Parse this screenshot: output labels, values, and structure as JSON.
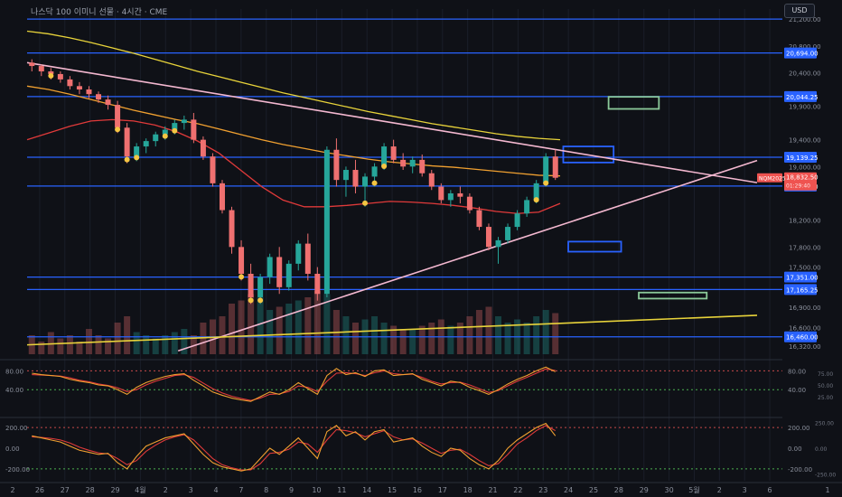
{
  "title": "나스닥 100 이미니 선물 · 4시간 · CME",
  "currency": "USD",
  "colors": {
    "bg": "#0f1117",
    "grid": "#1a1e29",
    "hline": "#2962ff",
    "up": "#26a69a",
    "down": "#ef7070",
    "ma_yellow": "#e8d33a",
    "ma_orange": "#f0a030",
    "ma_red": "#e03a3a",
    "trend_pink": "#f4b8d0",
    "box_blue": "#2962ff",
    "box_green": "#8bc99a",
    "marker": "#f5c542"
  },
  "price_axis": {
    "ticks": [
      "21,200.00",
      "20,800.00",
      "20,400.00",
      "19,900.00",
      "19,400.00",
      "19,000.00",
      "18,200.00",
      "17,800.00",
      "17,500.00",
      "16,900.00",
      "16,600.00",
      "16,320.00"
    ],
    "levels": [
      {
        "label": "20,694.00",
        "value": 20694
      },
      {
        "label": "20,044.25",
        "value": 20044.25
      },
      {
        "label": "19,139.25",
        "value": 19139.25
      },
      {
        "label": "18,709.00",
        "value": 18709
      },
      {
        "label": "17,351.00",
        "value": 17351
      },
      {
        "label": "17,165.25",
        "value": 17165.25
      },
      {
        "label": "16,460.00",
        "value": 16460
      }
    ],
    "current": {
      "symbol": "NQM2025",
      "price": "18,832.50",
      "countdown": "01:29:40"
    }
  },
  "x_axis": [
    "26",
    "27",
    "28",
    "29",
    "4월",
    "2",
    "3",
    "4",
    "7",
    "8",
    "9",
    "10",
    "11",
    "14",
    "15",
    "16",
    "17",
    "18",
    "21",
    "22",
    "23",
    "24",
    "25",
    "28",
    "29",
    "30",
    "5월",
    "2",
    "3",
    "6"
  ],
  "x_axis_edges": [
    "2",
    "1"
  ],
  "osc1": {
    "left_ticks": [
      "80.00",
      "40.00"
    ],
    "right_ticks": [
      "75.00",
      "50.00",
      "25.00"
    ],
    "mid_ticks": [
      "80.00",
      "40.00"
    ]
  },
  "osc2": {
    "left_ticks": [
      "200.00",
      "0.00",
      "-200.00"
    ],
    "right_ticks": [
      "250.00",
      "0.00",
      "-250.00"
    ],
    "mid_ticks": [
      "200.00",
      "0.00",
      "-200.00"
    ]
  },
  "chart_data": {
    "type": "candlestick",
    "title": "나스닥 100 이미니 선물 · 4시간 · CME",
    "ylim": [
      16200,
      21350
    ],
    "candles": [
      [
        20550,
        20600,
        20420,
        20500
      ],
      [
        20500,
        20520,
        20350,
        20420
      ],
      [
        20420,
        20470,
        20300,
        20380
      ],
      [
        20380,
        20420,
        20250,
        20300
      ],
      [
        20300,
        20350,
        20150,
        20200
      ],
      [
        20200,
        20260,
        20080,
        20150
      ],
      [
        20150,
        20200,
        20020,
        20080
      ],
      [
        20080,
        20120,
        19950,
        20000
      ],
      [
        20000,
        20060,
        19850,
        19920
      ],
      [
        19920,
        19980,
        19500,
        19580
      ],
      [
        19580,
        19650,
        19050,
        19150
      ],
      [
        19150,
        19350,
        19080,
        19300
      ],
      [
        19300,
        19420,
        19200,
        19380
      ],
      [
        19380,
        19520,
        19300,
        19480
      ],
      [
        19480,
        19600,
        19400,
        19550
      ],
      [
        19550,
        19700,
        19480,
        19650
      ],
      [
        19650,
        19760,
        19550,
        19700
      ],
      [
        19700,
        19800,
        19350,
        19400
      ],
      [
        19400,
        19450,
        19100,
        19150
      ],
      [
        19150,
        19200,
        18700,
        18750
      ],
      [
        18750,
        18800,
        18300,
        18350
      ],
      [
        18350,
        18400,
        17700,
        17800
      ],
      [
        17800,
        17900,
        17300,
        17400
      ],
      [
        17400,
        17550,
        16950,
        17050
      ],
      [
        17050,
        17400,
        16950,
        17350
      ],
      [
        17350,
        17700,
        17250,
        17650
      ],
      [
        17650,
        17800,
        17100,
        17200
      ],
      [
        17200,
        17600,
        17150,
        17550
      ],
      [
        17550,
        17900,
        17450,
        17850
      ],
      [
        17850,
        18000,
        17300,
        17400
      ],
      [
        17400,
        17500,
        17000,
        17100
      ],
      [
        17100,
        19300,
        17050,
        19250
      ],
      [
        19250,
        19420,
        18700,
        18800
      ],
      [
        18800,
        19000,
        18550,
        18950
      ],
      [
        18950,
        19100,
        18600,
        18700
      ],
      [
        18700,
        18900,
        18400,
        18850
      ],
      [
        18850,
        19050,
        18700,
        19000
      ],
      [
        19000,
        19350,
        18950,
        19300
      ],
      [
        19300,
        19400,
        19050,
        19100
      ],
      [
        19100,
        19200,
        18950,
        19000
      ],
      [
        19000,
        19150,
        18900,
        19100
      ],
      [
        19100,
        19180,
        18850,
        18900
      ],
      [
        18900,
        18950,
        18650,
        18700
      ],
      [
        18700,
        18750,
        18450,
        18500
      ],
      [
        18500,
        18650,
        18400,
        18600
      ],
      [
        18600,
        18700,
        18450,
        18550
      ],
      [
        18550,
        18600,
        18300,
        18350
      ],
      [
        18350,
        18400,
        18050,
        18100
      ],
      [
        18100,
        18150,
        17750,
        17800
      ],
      [
        17800,
        17950,
        17550,
        17900
      ],
      [
        17900,
        18150,
        17850,
        18100
      ],
      [
        18100,
        18350,
        18050,
        18300
      ],
      [
        18300,
        18550,
        18250,
        18500
      ],
      [
        18500,
        18800,
        18450,
        18750
      ],
      [
        18750,
        19200,
        18700,
        19150
      ],
      [
        19150,
        19250,
        18800,
        18832.5
      ]
    ],
    "moving_averages": [
      {
        "color": "yellow",
        "values": [
          21020,
          20980,
          20920,
          20850,
          20770,
          20690,
          20600,
          20510,
          20420,
          20340,
          20260,
          20180,
          20100,
          20030,
          19960,
          19890,
          19820,
          19760,
          19700,
          19640,
          19590,
          19540,
          19490,
          19450,
          19420,
          19400
        ]
      },
      {
        "color": "orange",
        "values": [
          20200,
          20150,
          20080,
          20000,
          19920,
          19840,
          19770,
          19700,
          19640,
          19560,
          19480,
          19400,
          19330,
          19270,
          19210,
          19160,
          19110,
          19070,
          19040,
          19010,
          18990,
          18960,
          18930,
          18900,
          18870,
          18860
        ]
      },
      {
        "color": "red",
        "values": [
          19400,
          19500,
          19600,
          19680,
          19700,
          19680,
          19620,
          19520,
          19380,
          19200,
          18950,
          18700,
          18500,
          18400,
          18400,
          18420,
          18450,
          18480,
          18470,
          18450,
          18420,
          18380,
          18330,
          18300,
          18320,
          18450
        ]
      }
    ],
    "trendlines": [
      {
        "color": "pink",
        "from": [
          0,
          20550
        ],
        "to": [
          29,
          18760
        ]
      },
      {
        "color": "pink",
        "from": [
          6,
          16250
        ],
        "to": [
          29,
          19090
        ]
      },
      {
        "color": "yellow",
        "from": [
          0,
          16340
        ],
        "to": [
          29,
          16780
        ]
      }
    ],
    "zones": [
      {
        "color": "green",
        "x": [
          23.1,
          25.1
        ],
        "y": [
          19860,
          20040
        ]
      },
      {
        "color": "blue",
        "x": [
          21.3,
          23.3
        ],
        "y": [
          19060,
          19300
        ]
      },
      {
        "color": "blue",
        "x": [
          21.5,
          23.6
        ],
        "y": [
          17730,
          17880
        ]
      },
      {
        "color": "green",
        "x": [
          24.3,
          27.0
        ],
        "y": [
          17030,
          17120
        ]
      }
    ],
    "volume": [
      0.3,
      0.2,
      0.35,
      0.25,
      0.3,
      0.2,
      0.4,
      0.3,
      0.25,
      0.5,
      0.6,
      0.35,
      0.3,
      0.25,
      0.3,
      0.35,
      0.4,
      0.3,
      0.5,
      0.55,
      0.6,
      0.8,
      0.85,
      0.95,
      0.9,
      0.7,
      0.75,
      0.8,
      0.85,
      0.9,
      1.0,
      0.95,
      0.7,
      0.6,
      0.5,
      0.55,
      0.6,
      0.5,
      0.45,
      0.4,
      0.4,
      0.45,
      0.5,
      0.55,
      0.45,
      0.5,
      0.6,
      0.7,
      0.75,
      0.6,
      0.5,
      0.55,
      0.5,
      0.6,
      0.7,
      0.65
    ],
    "oscillator1": {
      "ylim": [
        0,
        100
      ],
      "bands": [
        80,
        40
      ],
      "k": [
        75,
        72,
        70,
        68,
        62,
        58,
        55,
        50,
        48,
        40,
        30,
        45,
        55,
        62,
        68,
        72,
        74,
        60,
        48,
        35,
        28,
        22,
        18,
        15,
        25,
        35,
        30,
        40,
        55,
        42,
        30,
        70,
        85,
        72,
        76,
        68,
        80,
        82,
        70,
        72,
        74,
        62,
        55,
        48,
        58,
        55,
        45,
        38,
        30,
        40,
        52,
        62,
        70,
        80,
        88,
        78
      ],
      "d": [
        72,
        71,
        70,
        69,
        65,
        60,
        57,
        52,
        49,
        44,
        36,
        40,
        50,
        58,
        64,
        70,
        72,
        66,
        54,
        42,
        33,
        26,
        21,
        17,
        22,
        30,
        31,
        36,
        48,
        45,
        36,
        58,
        75,
        76,
        74,
        70,
        76,
        80,
        74,
        72,
        73,
        66,
        58,
        52,
        55,
        56,
        50,
        42,
        34,
        38,
        48,
        58,
        66,
        75,
        84,
        81
      ]
    },
    "oscillator2": {
      "ylim": [
        -280,
        280
      ],
      "bands": [
        200,
        -200
      ],
      "k": [
        120,
        100,
        80,
        60,
        20,
        -20,
        -40,
        -60,
        -50,
        -140,
        -200,
        -80,
        20,
        60,
        100,
        120,
        140,
        40,
        -60,
        -140,
        -180,
        -200,
        -220,
        -200,
        -100,
        0,
        -60,
        20,
        100,
        0,
        -100,
        160,
        220,
        120,
        160,
        80,
        160,
        180,
        60,
        80,
        100,
        20,
        -40,
        -80,
        0,
        -20,
        -100,
        -160,
        -200,
        -120,
        0,
        80,
        140,
        200,
        240,
        120
      ],
      "d": [
        110,
        105,
        95,
        80,
        50,
        10,
        -20,
        -45,
        -55,
        -100,
        -160,
        -120,
        -30,
        30,
        80,
        110,
        130,
        80,
        -10,
        -100,
        -160,
        -190,
        -210,
        -210,
        -150,
        -50,
        -40,
        -10,
        60,
        40,
        -40,
        80,
        180,
        170,
        150,
        110,
        140,
        170,
        110,
        80,
        90,
        50,
        0,
        -50,
        -20,
        -10,
        -60,
        -120,
        -170,
        -150,
        -60,
        40,
        100,
        170,
        220,
        170
      ]
    },
    "signal_markers": [
      2,
      9,
      10,
      11,
      14,
      15,
      22,
      23,
      24,
      35,
      36,
      37,
      53,
      54
    ]
  }
}
